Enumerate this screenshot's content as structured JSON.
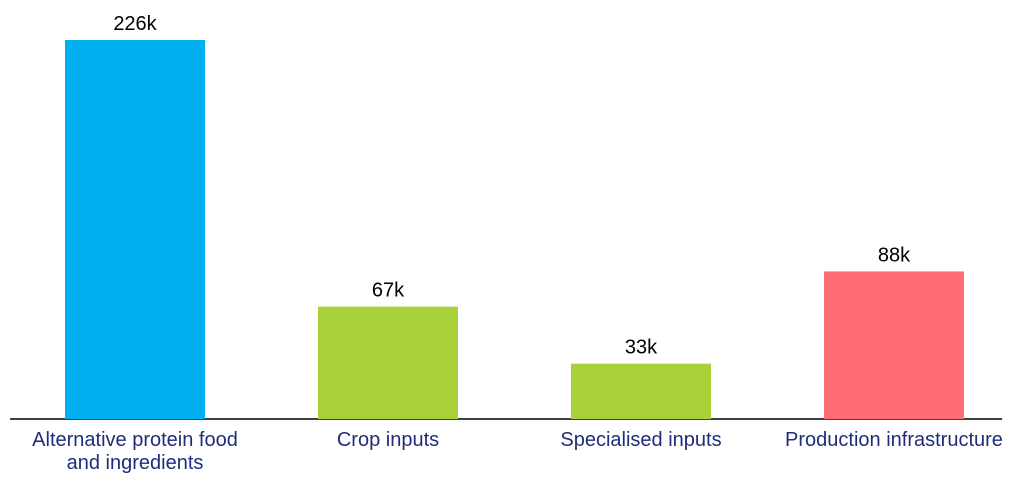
{
  "chart_data": {
    "type": "bar",
    "categories": [
      "Alternative protein food and ingredients",
      "Crop inputs",
      "Specialised inputs",
      "Production infrastructure"
    ],
    "values": [
      226000,
      67000,
      33000,
      88000
    ],
    "value_labels": [
      "226k",
      "67k",
      "33k",
      "88k"
    ],
    "colors": [
      "#00b0f0",
      "#a9d23a",
      "#a9d23a",
      "#ff6b72"
    ]
  }
}
